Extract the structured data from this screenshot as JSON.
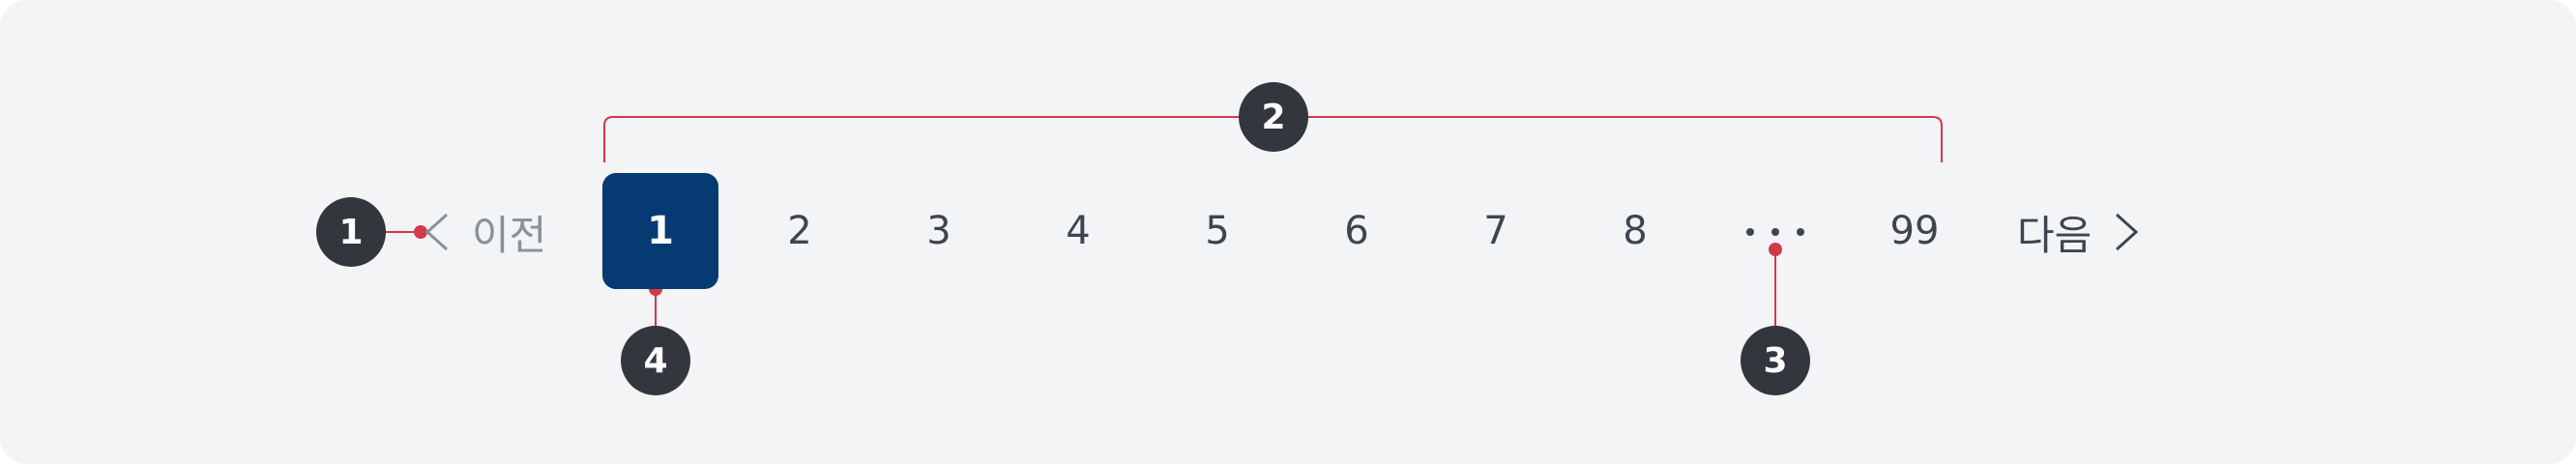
{
  "pagination": {
    "prev_label": "이전",
    "next_label": "다음",
    "pages": [
      {
        "label": "1",
        "active": true
      },
      {
        "label": "2"
      },
      {
        "label": "3"
      },
      {
        "label": "4"
      },
      {
        "label": "5"
      },
      {
        "label": "6"
      },
      {
        "label": "7"
      },
      {
        "label": "8"
      },
      {
        "label": "99"
      }
    ],
    "ellipsis_icon": "more-horizontal-icon"
  },
  "annotations": {
    "badge_1": "1",
    "badge_2": "2",
    "badge_3": "3",
    "badge_4": "4"
  },
  "colors": {
    "background": "#f3f4f6",
    "active_page": "#063a73",
    "annotation_line": "#d2394a",
    "badge": "#33363d",
    "text": "#3f4550",
    "disabled_text": "#8a919b"
  }
}
